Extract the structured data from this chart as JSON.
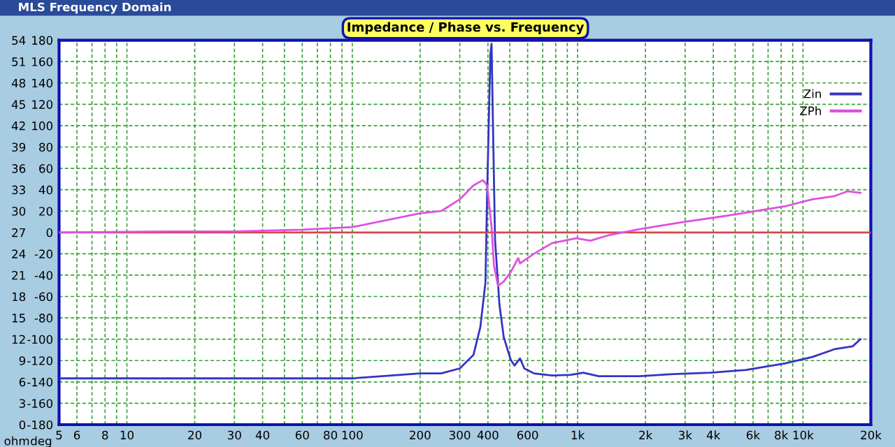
{
  "chart_data": {
    "type": "line",
    "title": "Impedance / Phase vs. Frequency",
    "ylabel": "ohm",
    "y2label": "deg",
    "annotations": [
      "MLS Frequency Domain"
    ],
    "log": "x",
    "xlim": [
      5,
      20000
    ],
    "xticks": [
      5,
      6,
      {
        "value": 7,
        "label": null
      },
      8,
      {
        "value": 9,
        "label": null
      },
      10,
      20,
      30,
      40,
      {
        "value": 50,
        "label": null
      },
      60,
      {
        "value": 70,
        "label": null
      },
      80,
      {
        "value": 90,
        "label": null
      },
      100,
      200,
      300,
      400,
      {
        "value": 500,
        "label": null
      },
      600,
      {
        "value": 700,
        "label": null
      },
      {
        "value": 800,
        "label": null
      },
      {
        "value": 900,
        "label": null
      },
      {
        "value": 1000,
        "label": "1k"
      },
      {
        "value": 2000,
        "label": "2k"
      },
      {
        "value": 3000,
        "label": "3k"
      },
      {
        "value": 4000,
        "label": "4k"
      },
      {
        "value": 5000,
        "label": null
      },
      {
        "value": 6000,
        "label": "6k"
      },
      {
        "value": 7000,
        "label": null
      },
      {
        "value": 8000,
        "label": "8k"
      },
      {
        "value": 9000,
        "label": null
      },
      {
        "value": 10000,
        "label": "10k"
      },
      {
        "value": 20000,
        "label": "20k"
      }
    ],
    "ylim": [
      0,
      54
    ],
    "yticks": [
      0,
      3,
      6,
      9,
      12,
      15,
      18,
      21,
      24,
      27,
      30,
      33,
      36,
      39,
      42,
      45,
      48,
      51,
      54
    ],
    "y2lim": [
      -180,
      180
    ],
    "y2ticks": [
      -180,
      -160,
      -140,
      -120,
      -100,
      -80,
      -60,
      -40,
      -20,
      0,
      20,
      40,
      60,
      80,
      100,
      120,
      140,
      160,
      180
    ],
    "grid": true,
    "legend": "top right",
    "line_style": "solid",
    "marker": "none",
    "ref_lines": [
      {
        "axis": "y2",
        "value": 0,
        "label": null,
        "color": "#d04848"
      }
    ],
    "series": [
      {
        "name": "Zin",
        "color": "#3434c4",
        "x": [
          5,
          10,
          30,
          100,
          200,
          248,
          300,
          345,
          370,
          390,
          397,
          410,
          415,
          420,
          430,
          450,
          470,
          505,
          525,
          555,
          580,
          640,
          770,
          935,
          1060,
          1240,
          1880,
          2650,
          3870,
          5600,
          8300,
          11000,
          13800,
          16600,
          18000
        ],
        "values": [
          6.5,
          6.5,
          6.5,
          6.5,
          7.2,
          7.2,
          7.9,
          9.8,
          13.7,
          20,
          33,
          52,
          53.5,
          44,
          26,
          16.8,
          12.3,
          9.1,
          8.3,
          9.3,
          7.9,
          7.2,
          6.9,
          7.0,
          7.3,
          6.8,
          6.8,
          7.1,
          7.3,
          7.7,
          8.6,
          9.5,
          10.6,
          11.0,
          12
        ]
      },
      {
        "name": "ZPh",
        "color": "#e050e0",
        "axis": "y2",
        "x": [
          5,
          15,
          30,
          60,
          100,
          200,
          248,
          300,
          345,
          380,
          397,
          415,
          425,
          443,
          470,
          505,
          545,
          555,
          640,
          770,
          985,
          1140,
          1370,
          1880,
          2880,
          4700,
          8300,
          11000,
          13800,
          15800,
          18000
        ],
        "values": [
          0,
          1,
          1,
          2.6,
          5,
          18,
          20,
          31,
          44,
          49,
          44,
          5,
          -30,
          -50,
          -46,
          -37,
          -24,
          -29,
          -20,
          -10,
          -5.5,
          -7.7,
          -2.6,
          3,
          9.4,
          16,
          24.4,
          31,
          34,
          38.6,
          37
        ]
      }
    ]
  }
}
